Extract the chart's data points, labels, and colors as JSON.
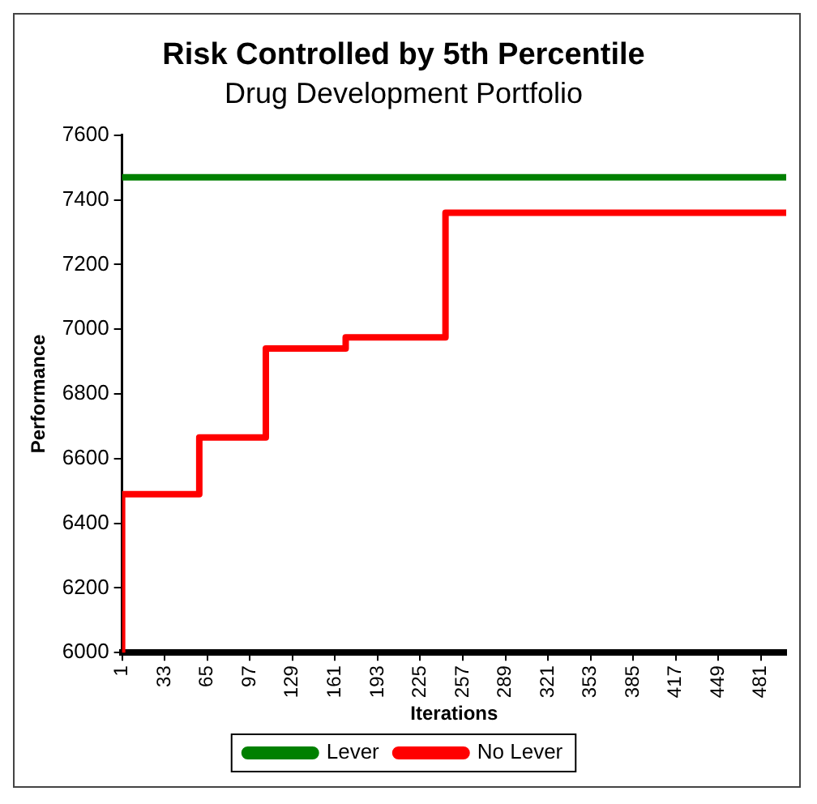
{
  "chart_data": {
    "type": "step",
    "title": "Risk Controlled by 5th Percentile",
    "subtitle": "Drug Development Portfolio",
    "xlabel": "Iterations",
    "ylabel": "Performance",
    "xlim": [
      1,
      500
    ],
    "xticks": [
      1,
      33,
      65,
      97,
      129,
      161,
      193,
      225,
      257,
      289,
      321,
      353,
      385,
      417,
      449,
      481
    ],
    "ylim": [
      6000,
      7600
    ],
    "yticks": [
      6000,
      6200,
      6400,
      6600,
      6800,
      7000,
      7200,
      7400,
      7600
    ],
    "series": [
      {
        "name": "Lever",
        "color": "#008000",
        "x": [
          1,
          500
        ],
        "values": [
          7470,
          7470
        ]
      },
      {
        "name": "No Lever",
        "color": "#ff0000",
        "x": [
          1,
          1,
          59,
          109,
          169,
          244,
          500
        ],
        "values": [
          6000,
          6490,
          6665,
          6940,
          6975,
          7360,
          7360
        ]
      }
    ],
    "grid": false,
    "legend": "bottom",
    "marker": "none",
    "line_style": "solid"
  }
}
